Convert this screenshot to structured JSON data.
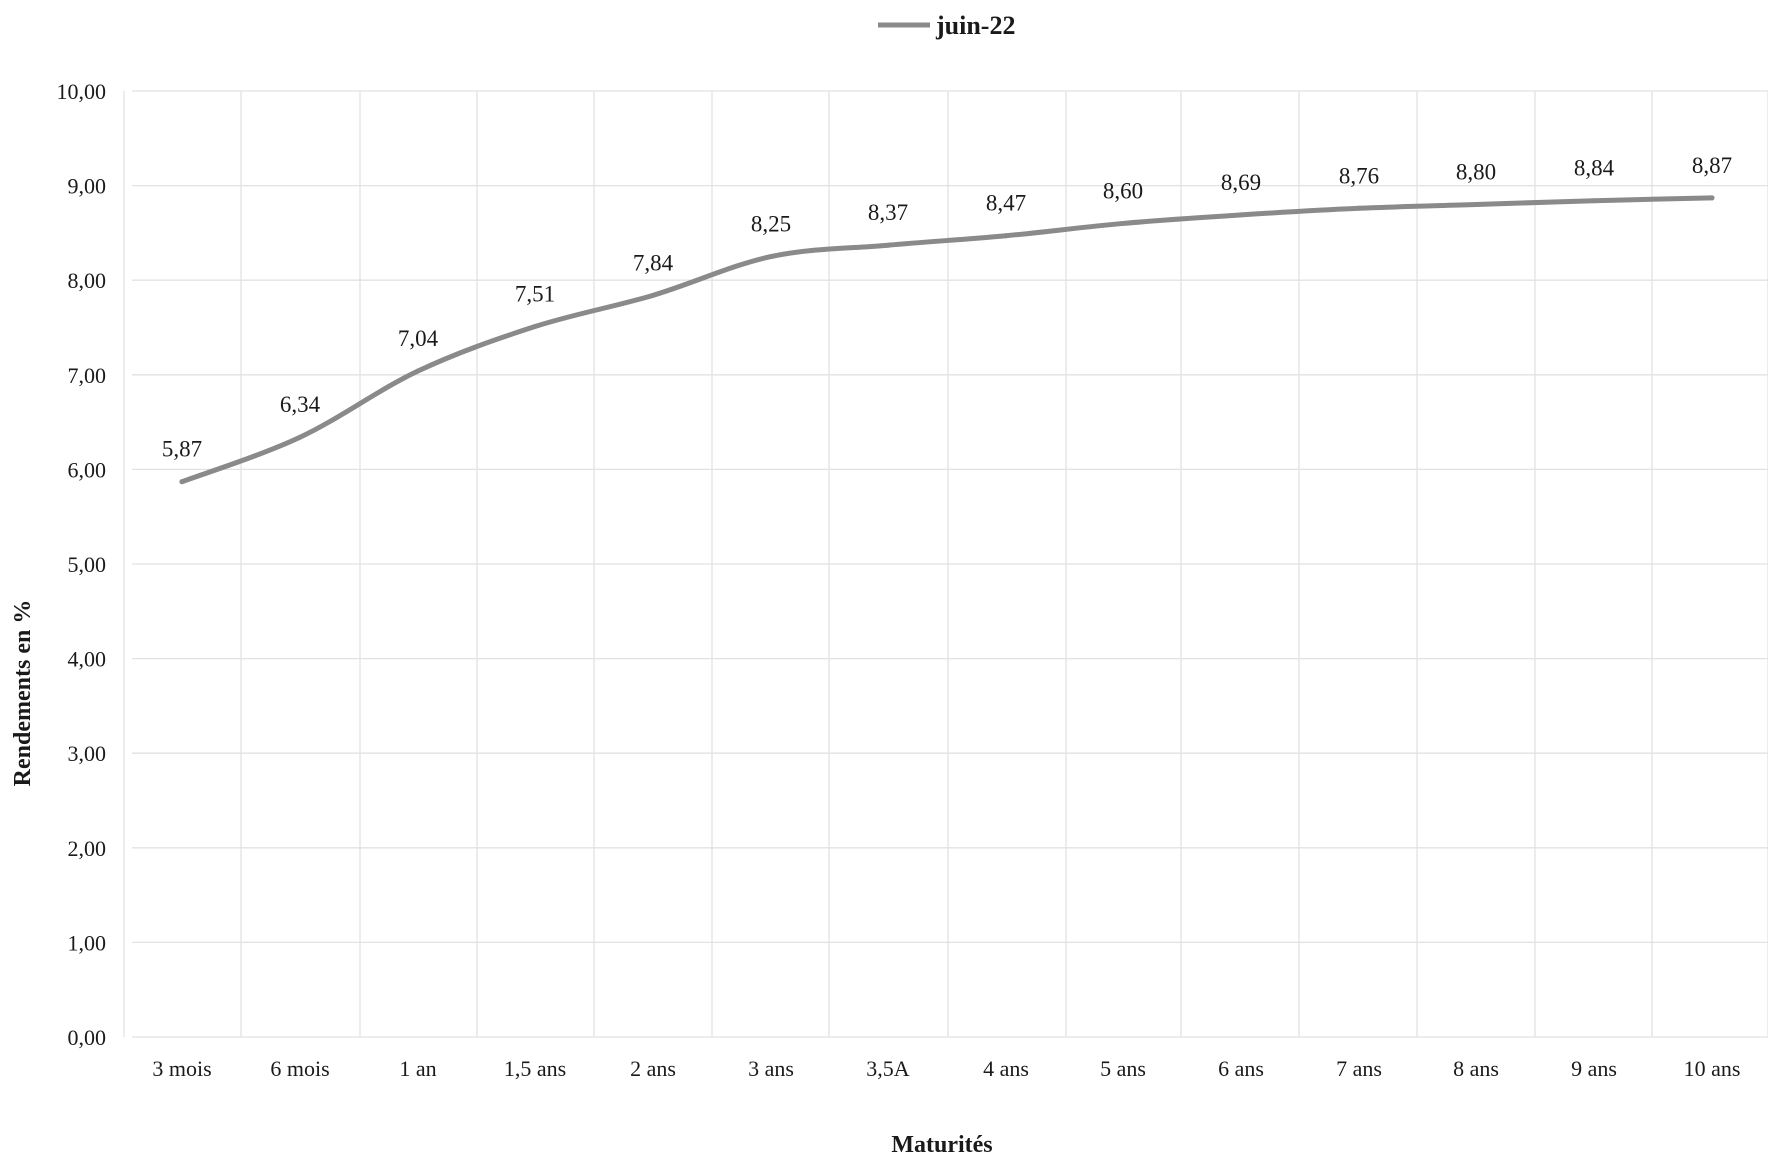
{
  "chart_data": {
    "type": "line",
    "categories": [
      "3 mois",
      "6 mois",
      "1 an",
      "1,5 ans",
      "2 ans",
      "3 ans",
      "3,5A",
      "4 ans",
      "5 ans",
      "6 ans",
      "7 ans",
      "8 ans",
      "9 ans",
      "10 ans"
    ],
    "series": [
      {
        "name": "juin-22",
        "values": [
          5.87,
          6.34,
          7.04,
          7.51,
          7.84,
          8.25,
          8.37,
          8.47,
          8.6,
          8.69,
          8.76,
          8.8,
          8.84,
          8.87
        ],
        "labels": [
          "5,87",
          "6,34",
          "7,04",
          "7,51",
          "7,84",
          "8,25",
          "8,37",
          "8,47",
          "8,60",
          "8,69",
          "8,76",
          "8,80",
          "8,84",
          "8,87"
        ],
        "color": "#8a8a8a"
      }
    ],
    "xlabel": "Maturités",
    "ylabel": "Rendements en %",
    "ylim": [
      0,
      10
    ],
    "yticks": [
      0,
      1,
      2,
      3,
      4,
      5,
      6,
      7,
      8,
      9,
      10
    ],
    "ytick_labels": [
      "0,00",
      "1,00",
      "2,00",
      "3,00",
      "4,00",
      "5,00",
      "6,00",
      "7,00",
      "8,00",
      "9,00",
      "10,00"
    ],
    "grid": true,
    "legend": "top-center"
  }
}
